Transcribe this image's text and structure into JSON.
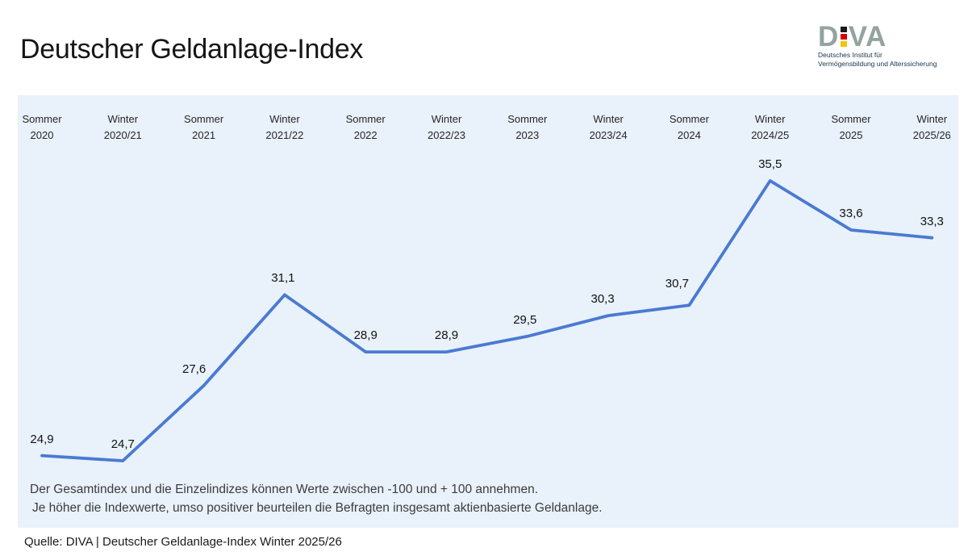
{
  "header": {
    "title": "Deutscher Geldanlage-Index",
    "logo": {
      "word_start": "D",
      "word_end": "VA",
      "letter_color": "#93a4a0",
      "flag_colors": [
        "#1a1a1a",
        "#d40000",
        "#f5c400"
      ],
      "subtitle_line1": "Deutsches Institut für",
      "subtitle_line2": "Vermögensbildung und Alterssicherung"
    }
  },
  "chart_data": {
    "type": "line",
    "title": "Deutscher Geldanlage-Index",
    "categories": [
      [
        "Sommer",
        "2020"
      ],
      [
        "Winter",
        "2020/21"
      ],
      [
        "Sommer",
        "2021"
      ],
      [
        "Winter",
        "2021/22"
      ],
      [
        "Sommer",
        "2022"
      ],
      [
        "Winter",
        "2022/23"
      ],
      [
        "Sommer",
        "2023"
      ],
      [
        "Winter",
        "2023/24"
      ],
      [
        "Sommer",
        "2024"
      ],
      [
        "Winter",
        "2024/25"
      ],
      [
        "Sommer",
        "2025"
      ],
      [
        "Winter",
        "2025/26"
      ]
    ],
    "values": [
      24.9,
      24.7,
      27.6,
      31.1,
      28.9,
      28.9,
      29.5,
      30.3,
      30.7,
      35.5,
      33.6,
      33.3
    ],
    "values_display": [
      "24,9",
      "24,7",
      "27,6",
      "31,1",
      "28,9",
      "28,9",
      "29,5",
      "30,3",
      "30,7",
      "35,5",
      "33,6",
      "33,3"
    ],
    "line_color": "#4a7ad2",
    "panel_background": "#e9f1fa",
    "ylim_visible": [
      24,
      37
    ],
    "stated_range": [
      -100,
      100
    ],
    "grid": false,
    "legend": "none",
    "x_axis_position": "top"
  },
  "notes": {
    "line1": "Der Gesamtindex und die Einzelindizes können Werte zwischen -100 und + 100 annehmen.",
    "line2": "Je höher die Indexwerte, umso positiver beurteilen die Befragten insgesamt aktienbasierte Geldanlage."
  },
  "footer": {
    "source": "Quelle: DIVA | Deutscher Geldanlage-Index Winter 2025/26"
  }
}
